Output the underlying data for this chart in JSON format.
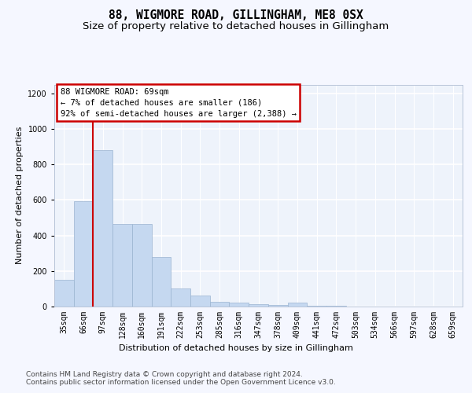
{
  "title": "88, WIGMORE ROAD, GILLINGHAM, ME8 0SX",
  "subtitle": "Size of property relative to detached houses in Gillingham",
  "xlabel": "Distribution of detached houses by size in Gillingham",
  "ylabel": "Number of detached properties",
  "categories": [
    "35sqm",
    "66sqm",
    "97sqm",
    "128sqm",
    "160sqm",
    "191sqm",
    "222sqm",
    "253sqm",
    "285sqm",
    "316sqm",
    "347sqm",
    "378sqm",
    "409sqm",
    "441sqm",
    "472sqm",
    "503sqm",
    "534sqm",
    "566sqm",
    "597sqm",
    "628sqm",
    "659sqm"
  ],
  "values": [
    150,
    595,
    880,
    465,
    465,
    280,
    100,
    60,
    28,
    20,
    15,
    8,
    20,
    3,
    3,
    2,
    2,
    1,
    1,
    1,
    1
  ],
  "bar_color": "#c5d8f0",
  "bar_edge_color": "#9ab4d0",
  "vline_x": 1.5,
  "vline_color": "#cc0000",
  "annotation_text": "88 WIGMORE ROAD: 69sqm\n← 7% of detached houses are smaller (186)\n92% of semi-detached houses are larger (2,388) →",
  "annotation_box_edgecolor": "#cc0000",
  "ylim": [
    0,
    1250
  ],
  "yticks": [
    0,
    200,
    400,
    600,
    800,
    1000,
    1200
  ],
  "footer_line1": "Contains HM Land Registry data © Crown copyright and database right 2024.",
  "footer_line2": "Contains public sector information licensed under the Open Government Licence v3.0.",
  "bg_color": "#eef3fb",
  "grid_color": "#ffffff",
  "fig_bg_color": "#f5f7ff",
  "title_fontsize": 10.5,
  "subtitle_fontsize": 9.5,
  "axis_label_fontsize": 8,
  "tick_fontsize": 7,
  "footer_fontsize": 6.5,
  "annotation_fontsize": 7.5
}
